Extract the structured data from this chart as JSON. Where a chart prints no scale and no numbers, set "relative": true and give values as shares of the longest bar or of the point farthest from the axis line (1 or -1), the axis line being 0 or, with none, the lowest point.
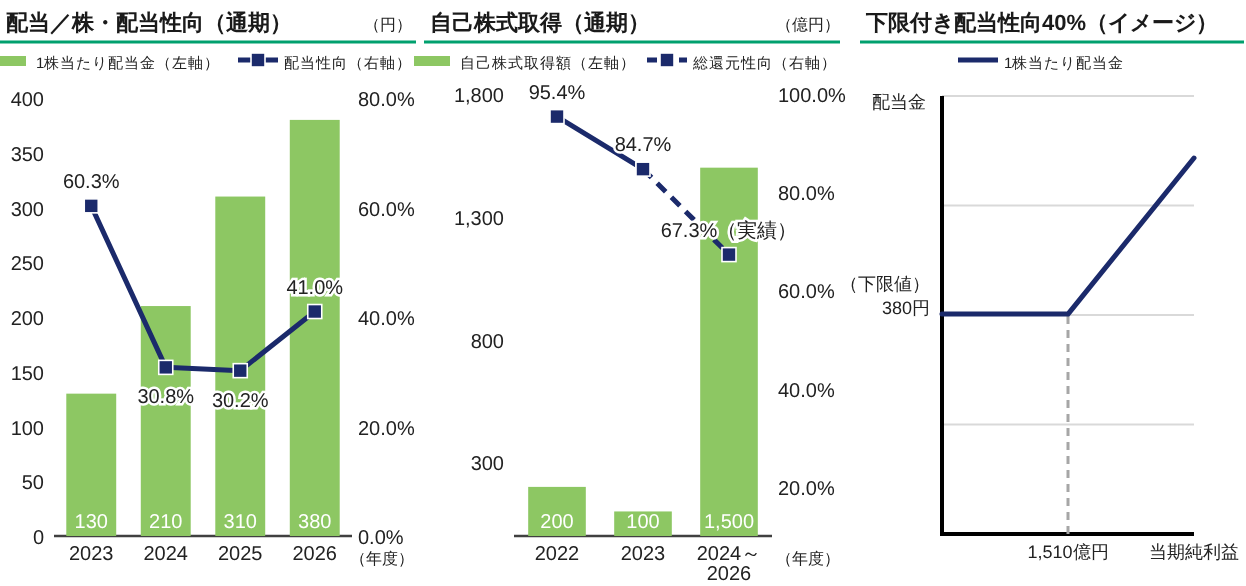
{
  "chart_data": [
    {
      "type": "bar",
      "title": "配当／株・配当性向（通期）",
      "categories": [
        "2023",
        "2024",
        "2025",
        "2026"
      ],
      "series": [
        {
          "name": "1株当たり配当金（左軸）",
          "color": "#8dc763",
          "values": [
            130,
            210,
            310,
            380
          ],
          "value_labels": [
            "130",
            "210",
            "310",
            "380"
          ]
        },
        {
          "name": "配当性向（右軸）",
          "type": "line",
          "axis": "y2",
          "color": "#1b2a6b",
          "values": [
            60.3,
            30.8,
            30.2,
            41.0
          ],
          "value_labels": [
            "60.3%",
            "30.8%",
            "30.2%",
            "41.0%"
          ]
        }
      ],
      "ylim": [
        0,
        400
      ],
      "yticks": [
        0,
        50,
        100,
        150,
        200,
        250,
        300,
        350,
        400
      ],
      "y2lim": [
        0,
        80
      ],
      "y2ticks": [
        {
          "value": 0,
          "label": "0.0%"
        },
        {
          "value": 20,
          "label": "20.0%"
        },
        {
          "value": 40,
          "label": "40.0%"
        },
        {
          "value": 60,
          "label": "60.0%"
        },
        {
          "value": 80,
          "label": "80.0%"
        }
      ],
      "annotations": [
        "（円）",
        "（年度）"
      ],
      "legend": "top",
      "marker": "square"
    },
    {
      "type": "bar",
      "title": "自己株式取得（通期）",
      "categories": [
        "2022",
        "2023",
        "2024～\n2026"
      ],
      "series": [
        {
          "name": "自己株式取得額（左軸）",
          "color": "#8dc763",
          "values": [
            200,
            100,
            1500
          ],
          "value_labels": [
            "200",
            "100",
            "1,500"
          ]
        },
        {
          "type": "line",
          "axis": "y2",
          "color": "#1b2a6b",
          "values": [
            95.4,
            84.7,
            null
          ],
          "value_labels": [
            "95.4%",
            "84.7%",
            null
          ]
        },
        {
          "name": "総還元性向（右軸）",
          "type": "line",
          "axis": "y2",
          "color": "#1b2a6b",
          "line_style": "dashed",
          "values": [
            null,
            84.7,
            67.3
          ],
          "value_labels": [
            null,
            null,
            "67.3%（実績）"
          ]
        }
      ],
      "ylim": [
        0,
        1800
      ],
      "yticks": [
        {
          "value": 300,
          "label": "300"
        },
        {
          "value": 800,
          "label": "800"
        },
        {
          "value": 1300,
          "label": "1,300"
        },
        {
          "value": 1800,
          "label": "1,800"
        }
      ],
      "y2lim": [
        10,
        100
      ],
      "y2ticks": [
        {
          "value": 20,
          "label": "20.0%"
        },
        {
          "value": 40,
          "label": "40.0%"
        },
        {
          "value": 60,
          "label": "60.0%"
        },
        {
          "value": 80,
          "label": "80.0%"
        },
        {
          "value": 100,
          "label": "100.0%"
        }
      ],
      "annotations": [
        "（億円）",
        "（年度）"
      ],
      "legend": "top",
      "marker": "square"
    },
    {
      "type": "line",
      "title": "下限付き配当性向40%（イメージ）",
      "categories": [
        null,
        "1,510億円",
        "当期純利益"
      ],
      "relative": true,
      "series": [
        {
          "name": "1株当たり配当金",
          "color": "#1b2a6b",
          "values": [
            0.585,
            0.585,
            1
          ]
        }
      ],
      "ylabel": "配当金",
      "grid": "y",
      "legend": "top",
      "ref_lines": [
        {
          "axis": "x",
          "value": "1,510億円",
          "color": "#a6a6a6",
          "line_style": "dashed"
        }
      ],
      "annotations": [
        "（下限値）\n380円"
      ]
    }
  ]
}
